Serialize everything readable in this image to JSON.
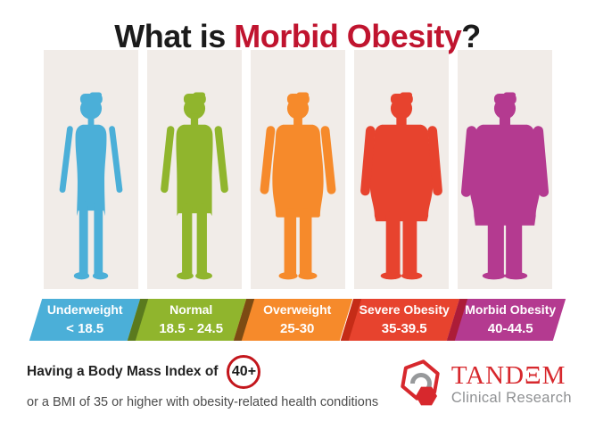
{
  "title": {
    "prefix": "What is ",
    "highlight": "Morbid Obesity",
    "suffix": "?"
  },
  "colors": {
    "title_text": "#1b1b1b",
    "title_highlight": "#c0142f",
    "panel_bg": "#f1ece8",
    "badge_ring": "#c3161c"
  },
  "categories": [
    {
      "label": "Underweight",
      "range": "< 18.5",
      "color": "#4bafd8",
      "divider": null,
      "figure": "underweight-male-silhouette"
    },
    {
      "label": "Normal",
      "range": "18.5 - 24.5",
      "color": "#90b52d",
      "divider": "#5a7a1e",
      "figure": "normal-male-silhouette"
    },
    {
      "label": "Overweight",
      "range": "25-30",
      "color": "#f68a2b",
      "divider": "#7c4b13",
      "figure": "overweight-male-silhouette"
    },
    {
      "label": "Severe Obesity",
      "range": "35-39.5",
      "color": "#e7432e",
      "divider": "#c52c17",
      "figure": "severe-obesity-male-silhouette"
    },
    {
      "label": "Morbid Obesity",
      "range": "40-44.5",
      "color": "#b43a90",
      "divider": "#ac1c38",
      "figure": "morbid-obesity-male-silhouette"
    }
  ],
  "footer": {
    "line1_prefix": "Having a Body Mass Index of",
    "line1_badge": "40+",
    "line2": "or a BMI of 35 or higher with obesity-related health conditions"
  },
  "logo": {
    "name_display": "TANDΞM",
    "tagline": "Clinical Research",
    "name_color": "#d7282d",
    "tagline_color": "#8f9193"
  }
}
